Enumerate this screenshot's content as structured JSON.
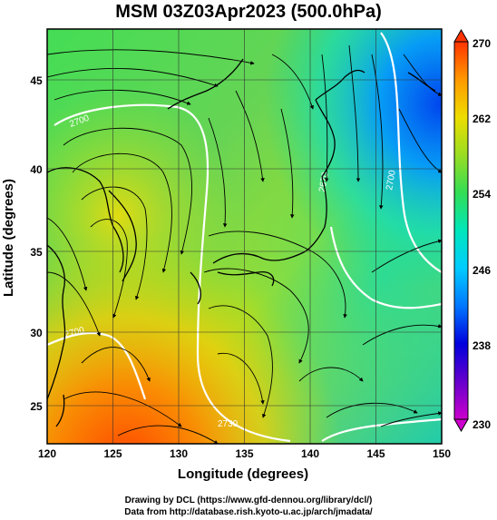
{
  "title": "MSM 03Z03Apr2023 (500.0hPa)",
  "map": {
    "xlabel": "Longitude (degrees)",
    "ylabel": "Latitude  (degrees)",
    "xlim": [
      120,
      150
    ],
    "ylim": [
      22.4,
      47.6
    ],
    "xticks": [
      "120",
      "125",
      "130",
      "135",
      "140",
      "145",
      "150"
    ],
    "yticks": [
      "25",
      "30",
      "35",
      "40",
      "45"
    ],
    "colorbar": {
      "min": 230,
      "max": 270,
      "ticks": [
        "230",
        "238",
        "246",
        "254",
        "262",
        "270"
      ],
      "colors": [
        "#cc00cc",
        "#6600cc",
        "#0000cc",
        "#0066ff",
        "#00ccff",
        "#00e6cc",
        "#33dd66",
        "#66cc33",
        "#ccdd00",
        "#ffcc00",
        "#ff8800",
        "#ff3300"
      ]
    },
    "contour_labels": [
      "2700",
      "2670",
      "2700",
      "2700",
      "2730"
    ]
  },
  "credits": {
    "line1": "Drawing by DCL (https://www.gfd-dennou.org/library/dcl/)",
    "line2": "Data from http://database.rish.kyoto-u.ac.jp/arch/jmadata/"
  }
}
